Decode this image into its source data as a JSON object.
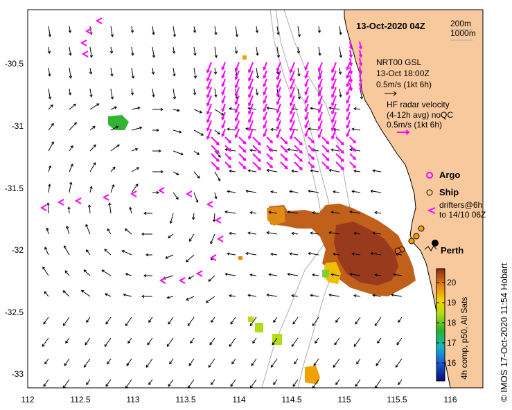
{
  "title": "13-Oct-2020 04Z",
  "depth_labels": [
    "200m",
    "1000m"
  ],
  "legend": {
    "nrt_model": "NRT00 GSL",
    "nrt_time": "13-Oct 18:00Z",
    "nrt_scale": "0.5m/s (1kt 6h)",
    "hf_line1": "HF radar velocity",
    "hf_line2": "(4-12h avg) noQC",
    "hf_scale": "0.5m/s (1kt 6h)",
    "argo": "Argo",
    "ship": "Ship",
    "drifters_line1": "drifters@6h",
    "drifters_line2": "to 14/10 06Z"
  },
  "place_label": "Perth",
  "colorbar": {
    "ticks": [
      "16",
      "17",
      "18",
      "19",
      "20"
    ],
    "caption": "4h comp, p50, All Sats"
  },
  "credit": "© IMOS 17-Oct-2020 11:54 Hobart",
  "axes": {
    "x_ticks": [
      "112",
      "112.5",
      "113",
      "113.5",
      "114",
      "114.5",
      "115",
      "115.5",
      "116"
    ],
    "y_ticks": [
      "-30.5",
      "-31",
      "-31.5",
      "-32",
      "-32.5",
      "-33"
    ]
  },
  "colors": {
    "land": "#f8c99c",
    "hf_radar": "#ff00ff",
    "model_arrow": "#000000",
    "isobath": "#a9a9a9"
  }
}
